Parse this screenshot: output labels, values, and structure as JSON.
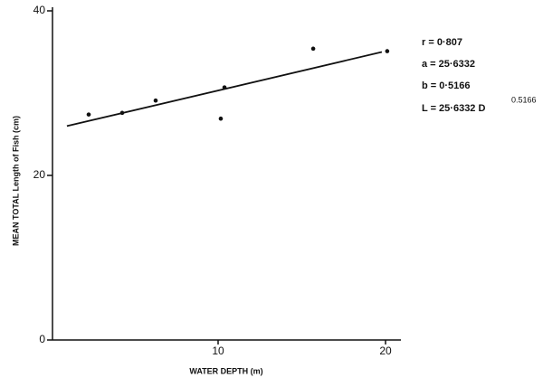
{
  "chart_data": {
    "type": "scatter",
    "x_label": "WATER DEPTH (m)",
    "y_label": "MEAN TOTAL Length of Fish (cm)",
    "x": [
      2.27,
      4.27,
      6.27,
      10.16,
      10.38,
      15.68,
      20.1
    ],
    "y": [
      27.4,
      27.6,
      29.1,
      26.9,
      30.7,
      35.4,
      35.1
    ],
    "color": "#111111",
    "fit_line": {
      "x": [
        0.97,
        19.78
      ],
      "y": [
        26.0,
        35.0
      ]
    },
    "xlim": [
      0,
      21
    ],
    "ylim": [
      0,
      40
    ],
    "xticks": [
      10,
      20
    ],
    "yticks": [
      0,
      20,
      40
    ],
    "annotations": [
      "r = 0·807",
      "a = 25·6332",
      "b = 0·5166",
      "L = 25·6332 D"
    ],
    "exponent": "0.5166"
  }
}
